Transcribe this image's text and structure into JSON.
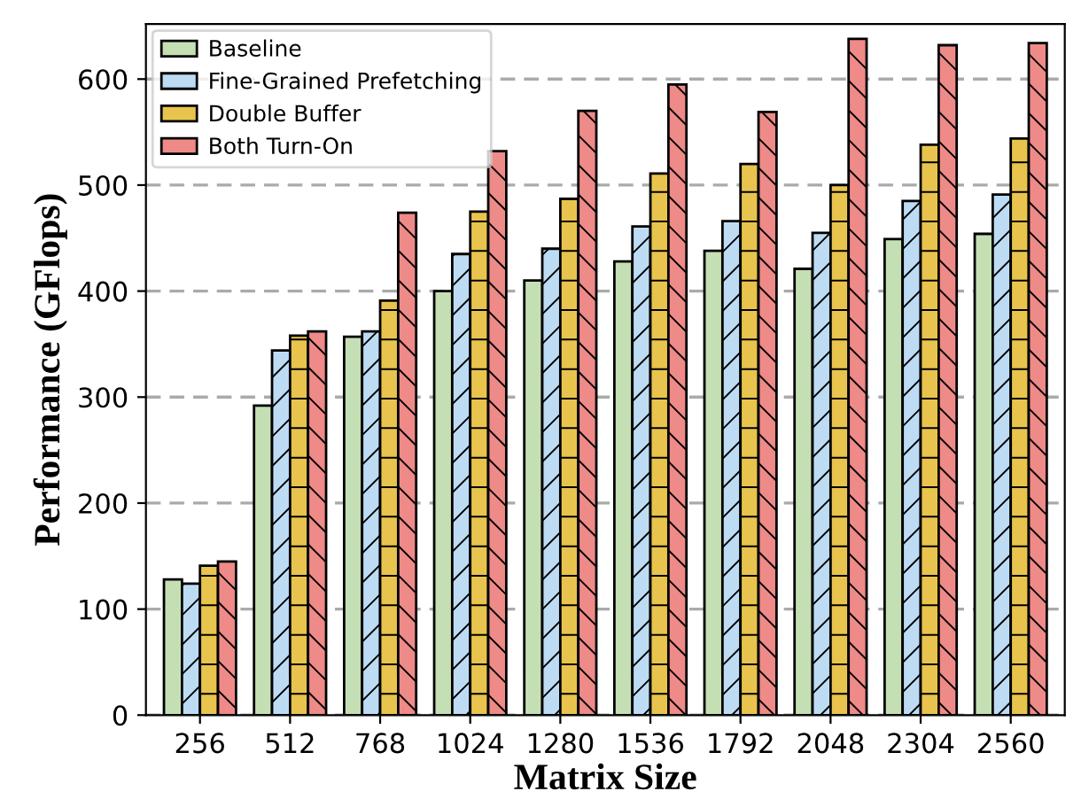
{
  "chart_data": {
    "type": "bar",
    "xlabel": "Matrix Size",
    "ylabel": "Performance (GFlops)",
    "categories": [
      "256",
      "512",
      "768",
      "1024",
      "1280",
      "1536",
      "1792",
      "2048",
      "2304",
      "2560"
    ],
    "series": [
      {
        "name": "Baseline",
        "color": "#c5dfb4",
        "values": [
          128,
          292,
          357,
          400,
          410,
          428,
          438,
          421,
          449,
          454
        ]
      },
      {
        "name": "Fine-Grained Prefetching",
        "color": "#bddcf4",
        "values": [
          124,
          344,
          362,
          435,
          440,
          461,
          466,
          455,
          485,
          491
        ]
      },
      {
        "name": "Double Buffer",
        "color": "#e8c44e",
        "values": [
          141,
          358,
          391,
          475,
          487,
          511,
          520,
          500,
          538,
          544
        ]
      },
      {
        "name": "Both Turn-On",
        "color": "#ee8a88",
        "values": [
          145,
          362,
          474,
          532,
          570,
          595,
          569,
          638,
          632,
          634
        ]
      }
    ],
    "ylim": [
      0,
      652
    ],
    "yticks": [
      0,
      100,
      200,
      300,
      400,
      500,
      600
    ],
    "grid": "y",
    "legend": "top left"
  }
}
